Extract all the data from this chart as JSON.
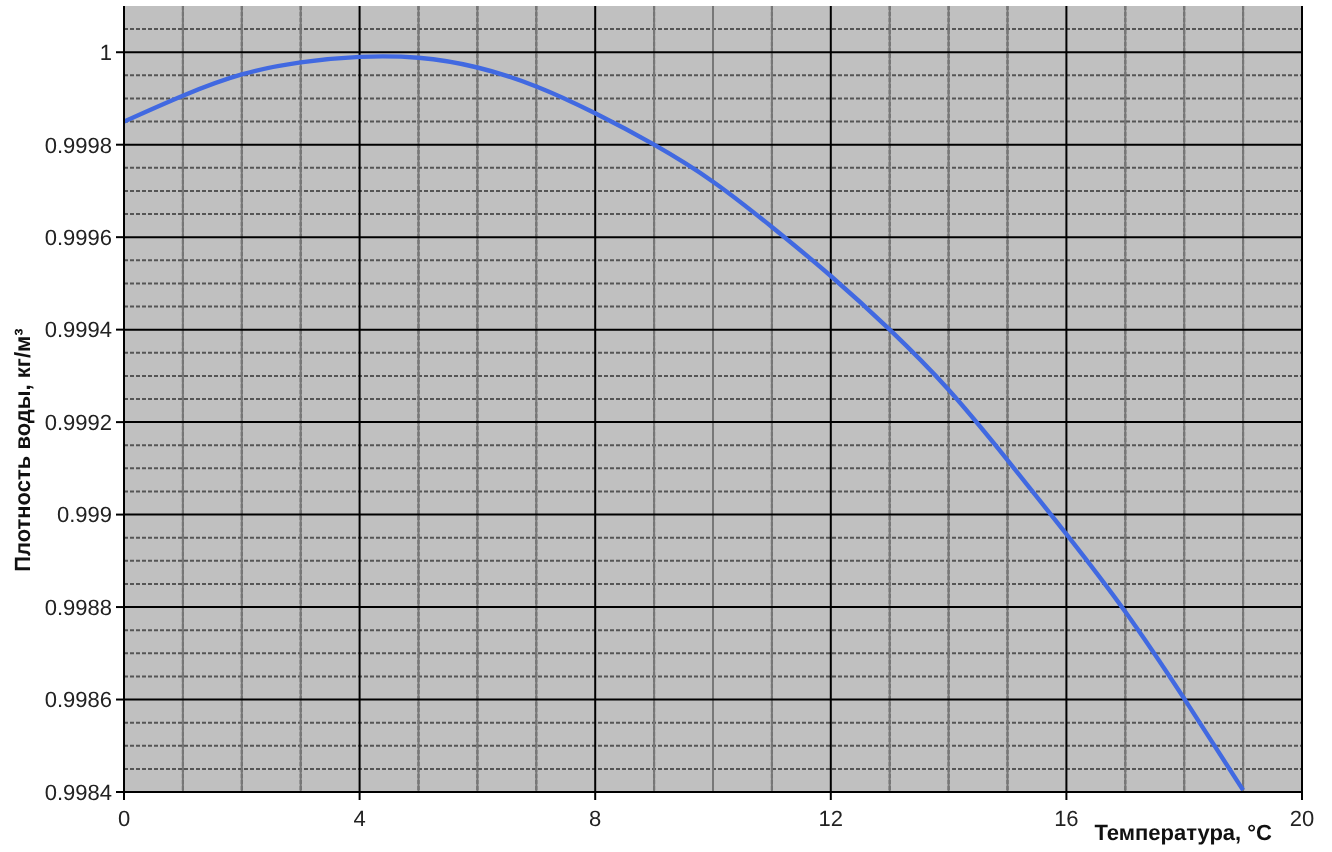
{
  "chart_data": {
    "type": "line",
    "xlabel": "Температура, °C",
    "ylabel": "Плотность воды, кг/м³",
    "x": [
      0,
      1,
      2,
      3,
      4,
      5,
      6,
      7,
      8,
      9,
      10,
      11,
      12,
      13,
      14,
      15,
      16,
      17,
      18,
      19
    ],
    "values": [
      0.99985,
      0.999906,
      0.999952,
      0.999978,
      0.99999,
      0.999988,
      0.999967,
      0.999926,
      0.999868,
      0.9998,
      0.99972,
      0.999622,
      0.999516,
      0.9994,
      0.99927,
      0.999118,
      0.998958,
      0.99879,
      0.998602,
      0.998404
    ],
    "color": "#4169e1",
    "xlim": [
      0,
      20
    ],
    "xticks": [
      0,
      4,
      8,
      12,
      16,
      20
    ],
    "ylim": [
      0.9984,
      1.0001
    ],
    "yticks": [
      0.9984,
      0.9986,
      0.9988,
      0.999,
      0.9992,
      0.9994,
      0.9996,
      0.9998,
      1
    ],
    "grid": true,
    "marker": "none",
    "line_style": "solid"
  }
}
